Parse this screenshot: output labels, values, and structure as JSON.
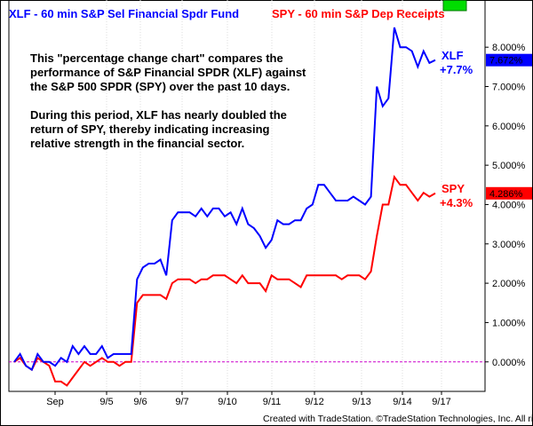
{
  "header": {
    "series1_title": "XLF - 60 min  S&P Sel Financial Spdr Fund",
    "series2_title": "SPY - 60 min  S&P Dep Receipts"
  },
  "annotation": {
    "paragraph1": [
      "This \"percentage change chart\" compares the",
      "performance of S&P Financial SPDR (XLF) against",
      "the S&P 500 SPDR (SPY) over the past 10 days."
    ],
    "paragraph2": [
      "During this period, XLF has nearly doubled the",
      "return of SPY, thereby indicating increasing",
      "relative strength in the financial sector."
    ]
  },
  "footer": {
    "credit": "Created with TradeStation. ©TradeStation Technologies, Inc. All rights reserved."
  },
  "colors": {
    "xlf": "#0000ff",
    "spy": "#ff0000",
    "baseline": "#cc00cc",
    "background": "#ffffff",
    "frame": "#000000"
  },
  "chart_data": {
    "type": "line",
    "x_tick_labels": [
      "Sep",
      "9/5",
      "9/6",
      "9/7",
      "9/10",
      "9/11",
      "9/12",
      "9/13",
      "9/14",
      "9/17"
    ],
    "y_tick_labels": [
      "8.000%",
      "7.000%",
      "6.000%",
      "5.000%",
      "4.000%",
      "3.000%",
      "2.000%",
      "1.000%",
      "0.000%"
    ],
    "ylim": [
      -0.75,
      9.2
    ],
    "y_unit": "%",
    "baseline_value": 0,
    "series": [
      {
        "key": "xlf",
        "label": "XLF",
        "change_label": "+7.7%",
        "last_value_label": "7.672%",
        "last_value": 7.672,
        "values": [
          0.0,
          0.2,
          -0.1,
          -0.2,
          0.2,
          0.0,
          0.0,
          -0.1,
          0.1,
          0.0,
          0.4,
          0.2,
          0.4,
          0.2,
          0.2,
          0.4,
          0.1,
          0.2,
          0.2,
          0.2,
          0.2,
          2.1,
          2.4,
          2.5,
          2.5,
          2.6,
          2.2,
          3.6,
          3.8,
          3.8,
          3.8,
          3.7,
          3.9,
          3.7,
          3.9,
          3.9,
          3.7,
          3.8,
          3.5,
          3.9,
          3.5,
          3.4,
          3.2,
          2.9,
          3.1,
          3.6,
          3.5,
          3.5,
          3.6,
          3.6,
          3.9,
          4.0,
          4.5,
          4.5,
          4.3,
          4.1,
          4.1,
          4.1,
          4.2,
          4.1,
          4.0,
          4.2,
          7.0,
          6.5,
          6.7,
          8.5,
          8.0,
          8.0,
          7.9,
          7.5,
          7.9,
          7.6,
          7.672
        ]
      },
      {
        "key": "spy",
        "label": "SPY",
        "change_label": "+4.3%",
        "last_value_label": "4.286%",
        "last_value": 4.286,
        "values": [
          0.0,
          0.1,
          -0.1,
          -0.2,
          0.1,
          0.0,
          -0.1,
          -0.5,
          -0.5,
          -0.6,
          -0.4,
          -0.2,
          0.0,
          -0.1,
          0.0,
          0.1,
          0.0,
          0.0,
          -0.1,
          0.0,
          0.0,
          1.5,
          1.7,
          1.7,
          1.7,
          1.7,
          1.6,
          2.0,
          2.1,
          2.1,
          2.1,
          2.0,
          2.1,
          2.1,
          2.2,
          2.2,
          2.2,
          2.1,
          2.0,
          2.2,
          2.0,
          2.0,
          2.0,
          1.8,
          2.2,
          2.1,
          2.1,
          2.1,
          2.0,
          1.9,
          2.2,
          2.2,
          2.2,
          2.2,
          2.2,
          2.2,
          2.1,
          2.2,
          2.2,
          2.2,
          2.1,
          2.3,
          3.2,
          4.0,
          4.0,
          4.7,
          4.5,
          4.5,
          4.3,
          4.1,
          4.3,
          4.2,
          4.286
        ]
      }
    ]
  }
}
